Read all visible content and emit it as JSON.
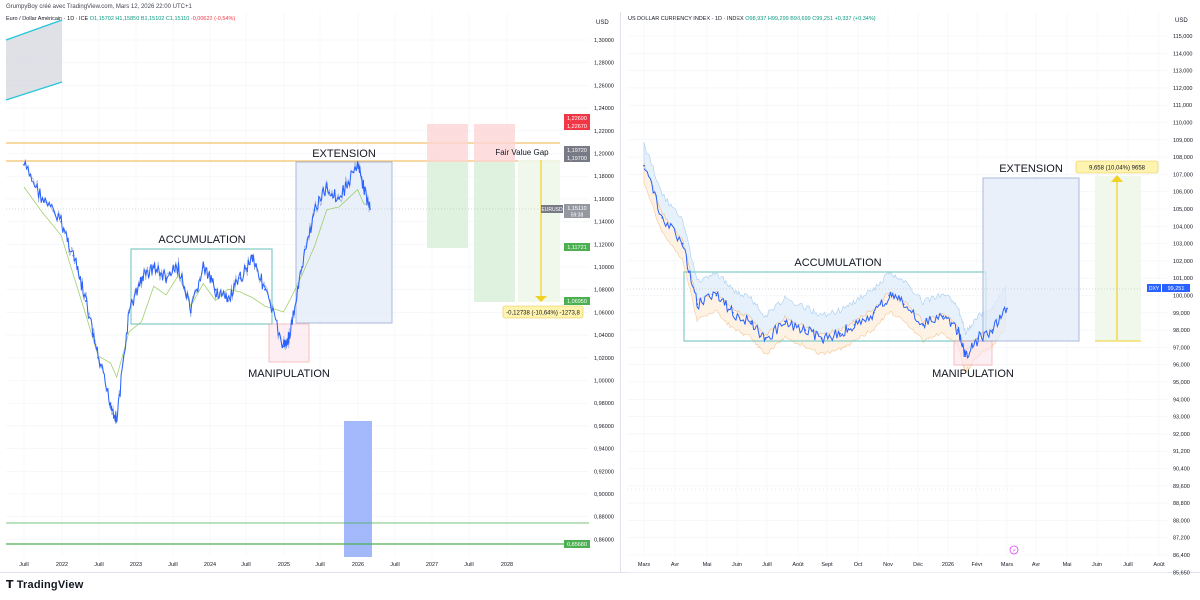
{
  "credit": "GrumpyBoy créé avec TradingView.com, Mars 12, 2026 22:00 UTC+1",
  "brand": "TradingView",
  "left": {
    "header_title": "Euro / Dollar Américain · 1D · ICE",
    "header_ohlc": "O1,15702 H1,15850 B1,15102 C1,15110",
    "header_change": "-0,00622 (-0,54%)",
    "currency": "USD",
    "y_ticks": [
      "1,30000",
      "1,28000",
      "1,26000",
      "1,24000",
      "1,22000",
      "1,20000",
      "1,18000",
      "1,16000",
      "1,14000",
      "1,12000",
      "1,10000",
      "1,08000",
      "1,06000",
      "1,04000",
      "1,02000",
      "1,00000",
      "0,98000",
      "0,96000",
      "0,94000",
      "0,92000",
      "0,90000",
      "0,88000",
      "0,86000"
    ],
    "x_ticks": [
      "Juill",
      "2022",
      "Juill",
      "2023",
      "Juill",
      "2024",
      "Juill",
      "2025",
      "Juill",
      "2026",
      "Juill",
      "2027",
      "Juill",
      "2028"
    ],
    "labels": {
      "extension": "EXTENSION",
      "accumulation": "ACCUMULATION",
      "manipulation": "MANIPULATION",
      "fvg": "Fair Value Gap"
    },
    "measure": "-0,12738 (-10,64%) -1273,8",
    "price_tags": {
      "red_a": "1,22690",
      "red_b": "1,22670",
      "grey_a": "1,19720",
      "grey_b": "1,19700",
      "symbol": "EURUSD",
      "last": "1,15110",
      "countdown": "59:38",
      "green_a": "1,11721",
      "green_b": "1,06950",
      "bottom": "0,85680"
    },
    "chart_data": {
      "type": "line",
      "title": "Euro / Dollar Américain · 1D · ICE",
      "xlabel": "",
      "ylabel": "USD",
      "ylim": [
        0.85,
        1.31
      ],
      "x": [
        "2021-07",
        "2021-10",
        "2022-01",
        "2022-03",
        "2022-05",
        "2022-07",
        "2022-09",
        "2022-10",
        "2022-12",
        "2023-02",
        "2023-04",
        "2023-06",
        "2023-08",
        "2023-10",
        "2023-12",
        "2024-02",
        "2024-04",
        "2024-06",
        "2024-08",
        "2024-10",
        "2025-01",
        "2025-02",
        "2025-04",
        "2025-06",
        "2025-08",
        "2025-10",
        "2026-01",
        "2026-02",
        "2026-03"
      ],
      "series": [
        {
          "values": [
            1.19,
            1.16,
            1.14,
            1.11,
            1.07,
            1.02,
            0.98,
            0.965,
            1.06,
            1.09,
            1.1,
            1.09,
            1.1,
            1.06,
            1.1,
            1.08,
            1.07,
            1.09,
            1.11,
            1.08,
            1.03,
            1.04,
            1.1,
            1.15,
            1.17,
            1.16,
            1.19,
            1.17,
            1.151
          ]
        }
      ]
    }
  },
  "right": {
    "header_title": "US DOLLAR CURRENCY INDEX · 1D · INDEX",
    "header_ohlc": "O98,937 H99,299 B98,699 C99,251",
    "header_change": "+0,337 (+0,34%)",
    "currency": "USD",
    "y_ticks": [
      "115,000",
      "114,000",
      "113,000",
      "112,000",
      "111,000",
      "110,000",
      "109,000",
      "108,000",
      "107,000",
      "106,000",
      "105,000",
      "104,000",
      "103,000",
      "102,000",
      "101,000",
      "100,000",
      "99,000",
      "98,000",
      "97,000",
      "96,000",
      "95,000",
      "94,000",
      "93,000",
      "92,000",
      "91,200",
      "90,400",
      "89,600",
      "88,800",
      "88,000",
      "87,200",
      "86,400",
      "85,650",
      "84,900"
    ],
    "x_ticks": [
      "Mars",
      "Avr",
      "Mai",
      "Juin",
      "Juill",
      "Août",
      "Sept",
      "Oct",
      "Nov",
      "Déc",
      "2026",
      "Févr",
      "Mars",
      "Avr",
      "Mai",
      "Juin",
      "Juill",
      "Août"
    ],
    "labels": {
      "extension": "EXTENSION",
      "accumulation": "ACCUMULATION",
      "manipulation": "MANIPULATION"
    },
    "measure": "9,658 (10,04%) 9658",
    "price_tags": {
      "symbol": "DXY",
      "last": "99,251"
    },
    "chart_data": {
      "type": "line",
      "title": "US DOLLAR CURRENCY INDEX · 1D · INDEX",
      "xlabel": "",
      "ylabel": "USD",
      "ylim": [
        84.9,
        115.0
      ],
      "x": [
        "2025-03-01",
        "2025-03-20",
        "2025-04-10",
        "2025-04-25",
        "2025-05-15",
        "2025-06-01",
        "2025-06-20",
        "2025-07-05",
        "2025-07-25",
        "2025-08-15",
        "2025-09-01",
        "2025-09-20",
        "2025-10-05",
        "2025-10-25",
        "2025-11-10",
        "2025-11-25",
        "2025-12-15",
        "2026-01-05",
        "2026-01-20",
        "2026-01-28",
        "2026-02-10",
        "2026-02-25",
        "2026-03-12"
      ],
      "series": [
        {
          "values": [
            107.5,
            104.5,
            103.0,
            99.5,
            100.0,
            99.0,
            98.5,
            97.5,
            98.5,
            98.0,
            97.5,
            97.8,
            98.3,
            99.0,
            100.0,
            99.5,
            98.3,
            98.8,
            98.0,
            96.5,
            97.5,
            98.0,
            99.251
          ]
        }
      ]
    }
  }
}
